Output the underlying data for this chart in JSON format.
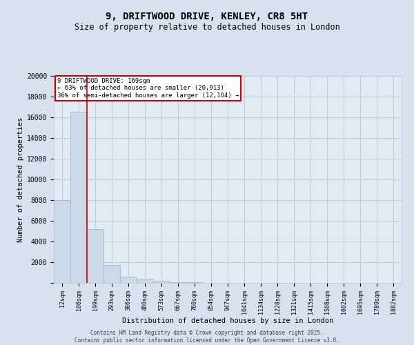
{
  "title_line1": "9, DRIFTWOOD DRIVE, KENLEY, CR8 5HT",
  "title_line2": "Size of property relative to detached houses in London",
  "xlabel": "Distribution of detached houses by size in London",
  "ylabel": "Number of detached properties",
  "bar_color": "#ccd9e8",
  "bar_edge_color": "#9ab0c8",
  "grid_color": "#b8c8d8",
  "background_color": "#d8e2ee",
  "plot_bg_color": "#e2eaf4",
  "vline_color": "#cc0000",
  "annotation_box_color": "#cc0000",
  "categories": [
    "12sqm",
    "106sqm",
    "199sqm",
    "293sqm",
    "386sqm",
    "480sqm",
    "573sqm",
    "667sqm",
    "760sqm",
    "854sqm",
    "947sqm",
    "1041sqm",
    "1134sqm",
    "1228sqm",
    "1321sqm",
    "1415sqm",
    "1508sqm",
    "1602sqm",
    "1695sqm",
    "1789sqm",
    "1882sqm"
  ],
  "values": [
    8000,
    16500,
    5200,
    1750,
    600,
    380,
    190,
    95,
    50,
    20,
    10,
    5,
    3,
    2,
    1,
    1,
    0,
    0,
    0,
    0,
    0
  ],
  "vline_x": 2.0,
  "annotation_text_line1": "9 DRIFTWOOD DRIVE: 169sqm",
  "annotation_text_line2": "← 63% of detached houses are smaller (20,913)",
  "annotation_text_line3": "36% of semi-detached houses are larger (12,104) →",
  "ylim": [
    0,
    20000
  ],
  "yticks": [
    0,
    2000,
    4000,
    6000,
    8000,
    10000,
    12000,
    14000,
    16000,
    18000,
    20000
  ],
  "footer_line1": "Contains HM Land Registry data © Crown copyright and database right 2025.",
  "footer_line2": "Contains public sector information licensed under the Open Government Licence v3.0."
}
